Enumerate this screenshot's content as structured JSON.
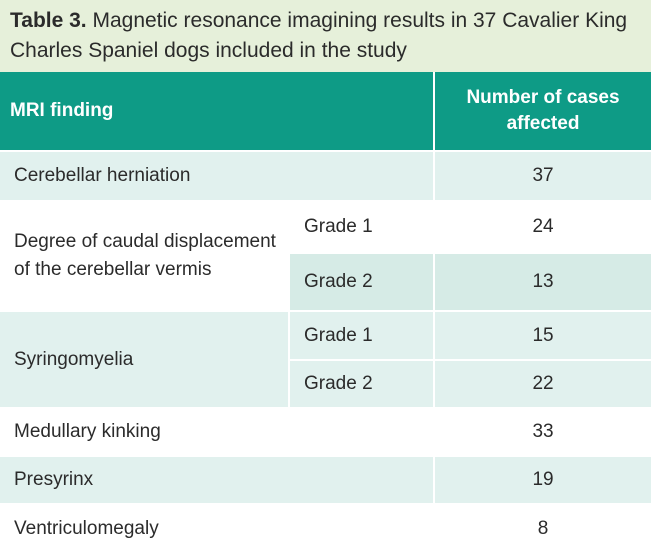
{
  "caption": {
    "label": "Table 3.",
    "text": " Magnetic resonance imagining results in 37 Cavalier King Charles Spaniel dogs included in the study"
  },
  "header": {
    "finding": "MRI finding",
    "cases_line1": "Number of cases",
    "cases_line2": "affected"
  },
  "rows": {
    "cerebellar": {
      "label": "Cerebellar herniation",
      "value": "37"
    },
    "degree": {
      "label": "Degree of caudal displacement of the cerebellar vermis",
      "grade1": {
        "label": "Grade 1",
        "value": "24"
      },
      "grade2": {
        "label": "Grade 2",
        "value": "13"
      }
    },
    "syringo": {
      "label": "Syringomyelia",
      "grade1": {
        "label": "Grade 1",
        "value": "15"
      },
      "grade2": {
        "label": "Grade 2",
        "value": "22"
      }
    },
    "medullary": {
      "label": "Medullary kinking",
      "value": "33"
    },
    "presyrinx": {
      "label": "Presyrinx",
      "value": "19"
    },
    "ventriculo": {
      "label": "Ventriculomegaly",
      "value": "8"
    }
  },
  "colors": {
    "header_bg": "#0e9b86",
    "caption_bg": "#e6f0da",
    "row_shade": "#e1f1ee"
  }
}
